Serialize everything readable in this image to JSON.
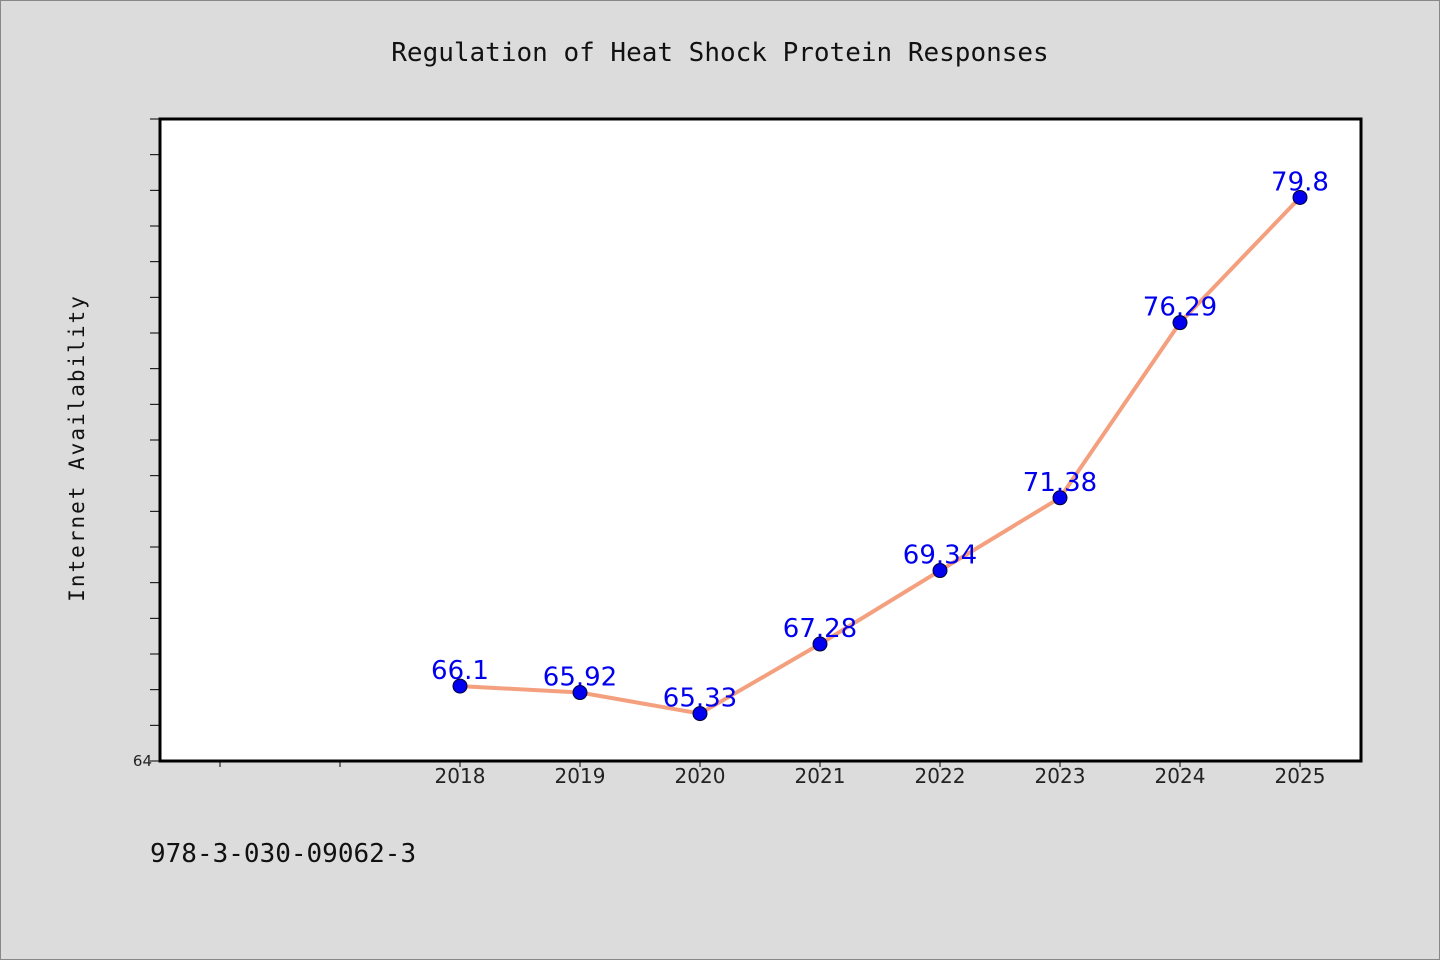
{
  "chart_data": {
    "type": "line",
    "title": "Regulation of Heat Shock Protein Responses",
    "xlabel": "",
    "ylabel": "Internet Availability",
    "categories": [
      "2018",
      "2019",
      "2020",
      "2021",
      "2022",
      "2023",
      "2024",
      "2025"
    ],
    "values": [
      66.1,
      65.92,
      65.33,
      67.28,
      69.34,
      71.38,
      76.29,
      79.8
    ],
    "data_labels": [
      "66.1",
      "65.92",
      "65.33",
      "67.28",
      "69.34",
      "71.38",
      "76.29",
      "79.8"
    ],
    "ylim": [
      64,
      82
    ],
    "y_tick_labels": [
      "64"
    ],
    "grid": false,
    "line_color": "#f4a07f",
    "marker_color": "#0000ee",
    "label_color": "#0000ee"
  },
  "footer": {
    "isbn": "978-3-030-09062-3"
  }
}
